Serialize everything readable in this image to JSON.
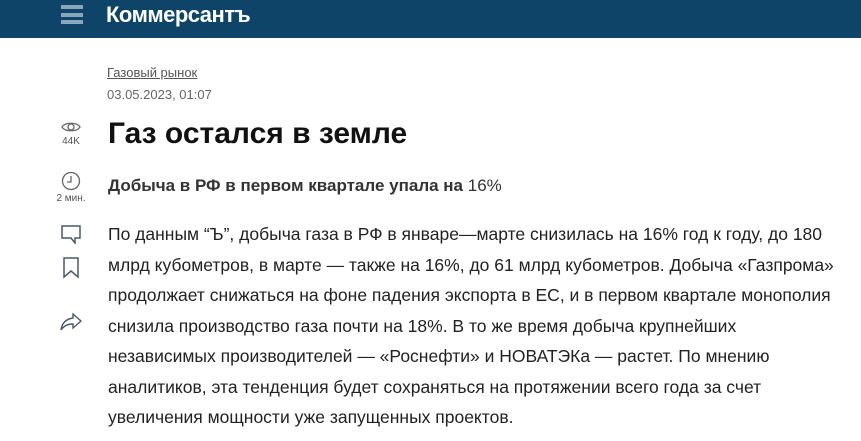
{
  "header": {
    "logo": "Коммерсантъ"
  },
  "article": {
    "rubric": "Газовый рынок",
    "date": "03.05.2023, 01:07",
    "title": "Газ остался в земле",
    "subtitle": "Добыча в РФ в первом квартале упала на",
    "subtitle_value": "16%",
    "body": "По данным “Ъ”, добыча газа в РФ в январе—марте снизилась на 16% год к году, до 180 млрд кубометров, в марте — также на 16%, до 61 млрд кубометров. Добыча «Газпрома» продолжает снижаться на фоне падения экспорта в ЕС, и в первом квартале монополия снизила производство газа почти на 18%. В то же время добыча крупнейших независимых производителей — «Роснефти» и НОВАТЭКа — растет. По мнению аналитиков, эта тенденция будет сохраняться на протяжении всего года за счет увеличения мощности уже запущенных проектов."
  },
  "sidebar": {
    "views": "44K",
    "read_time": "2 мин."
  },
  "colors": {
    "header_bg": "#0e4468"
  }
}
